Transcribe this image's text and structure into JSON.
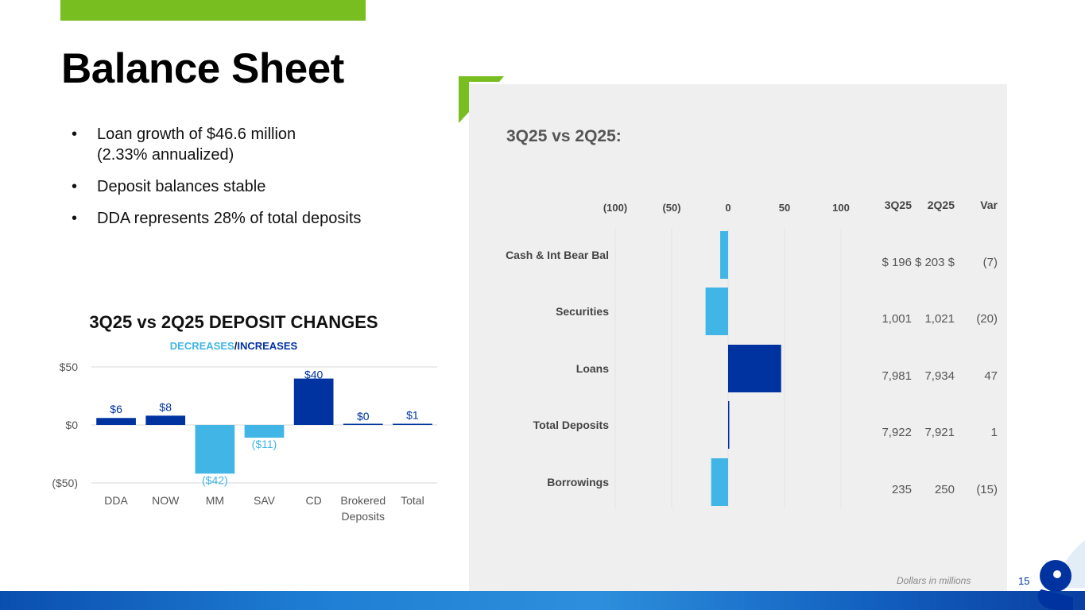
{
  "page": {
    "title": "Balance Sheet",
    "bullets": [
      {
        "line1": "Loan growth of $46.6 million",
        "line2": "(2.33% annualized)"
      },
      {
        "line1": "Deposit balances stable",
        "line2": ""
      },
      {
        "line1": "DDA represents 28% of total deposits",
        "line2": ""
      }
    ],
    "footnote": "Dollars in millions",
    "page_number": "15",
    "bullet_glyph": "•"
  },
  "deposit_chart_header": {
    "title": "3Q25 vs 2Q25 DEPOSIT CHANGES",
    "decreases": "DECREASES",
    "slash": "/",
    "increases": "INCREASES"
  },
  "balance_panel": {
    "heading": "3Q25 vs 2Q25:"
  },
  "colors": {
    "increase": "#0033a0",
    "decrease": "#41b6e6",
    "accent_green": "#78be20",
    "panel_bg": "#efefef"
  },
  "chart_data": [
    {
      "type": "bar",
      "title": "3Q25 vs 2Q25 DEPOSIT CHANGES",
      "subtitle": "DECREASES/INCREASES",
      "categories": [
        "DDA",
        "NOW",
        "MM",
        "SAV",
        "CD",
        "Brokered\nDeposits",
        "Total"
      ],
      "values": [
        6,
        8,
        -42,
        -11,
        40,
        0,
        1
      ],
      "data_labels": [
        "$6",
        "$8",
        "($42)",
        "($11)",
        "$40",
        "$0",
        "$1"
      ],
      "y_ticks": [
        50,
        0,
        -50
      ],
      "y_tick_labels": [
        "$50",
        "$0",
        "($50)"
      ],
      "ylim": [
        -50,
        50
      ],
      "grid": true,
      "xlabel": "",
      "ylabel": ""
    },
    {
      "type": "bar",
      "orientation": "horizontal",
      "title": "3Q25 vs 2Q25:",
      "categories": [
        "Cash & Int Bear Bal",
        "Securities",
        "Loans",
        "Total Deposits",
        "Borrowings"
      ],
      "values": [
        -7,
        -20,
        47,
        1,
        -15
      ],
      "x_ticks": [
        -100,
        -50,
        0,
        50,
        100
      ],
      "x_tick_labels": [
        "(100)",
        "(50)",
        "0",
        "50",
        "100"
      ],
      "xlim": [
        -100,
        100
      ],
      "table_headers": [
        "3Q25",
        "2Q25",
        "Var"
      ],
      "table_rows": [
        [
          "$ 196",
          "$ 203 $",
          "(7)"
        ],
        [
          "1,001",
          "1,021",
          "(20)"
        ],
        [
          "7,981",
          "7,934",
          "47"
        ],
        [
          "7,922",
          "7,921",
          "1"
        ],
        [
          "235",
          "250",
          "(15)"
        ]
      ],
      "grid": true
    }
  ]
}
